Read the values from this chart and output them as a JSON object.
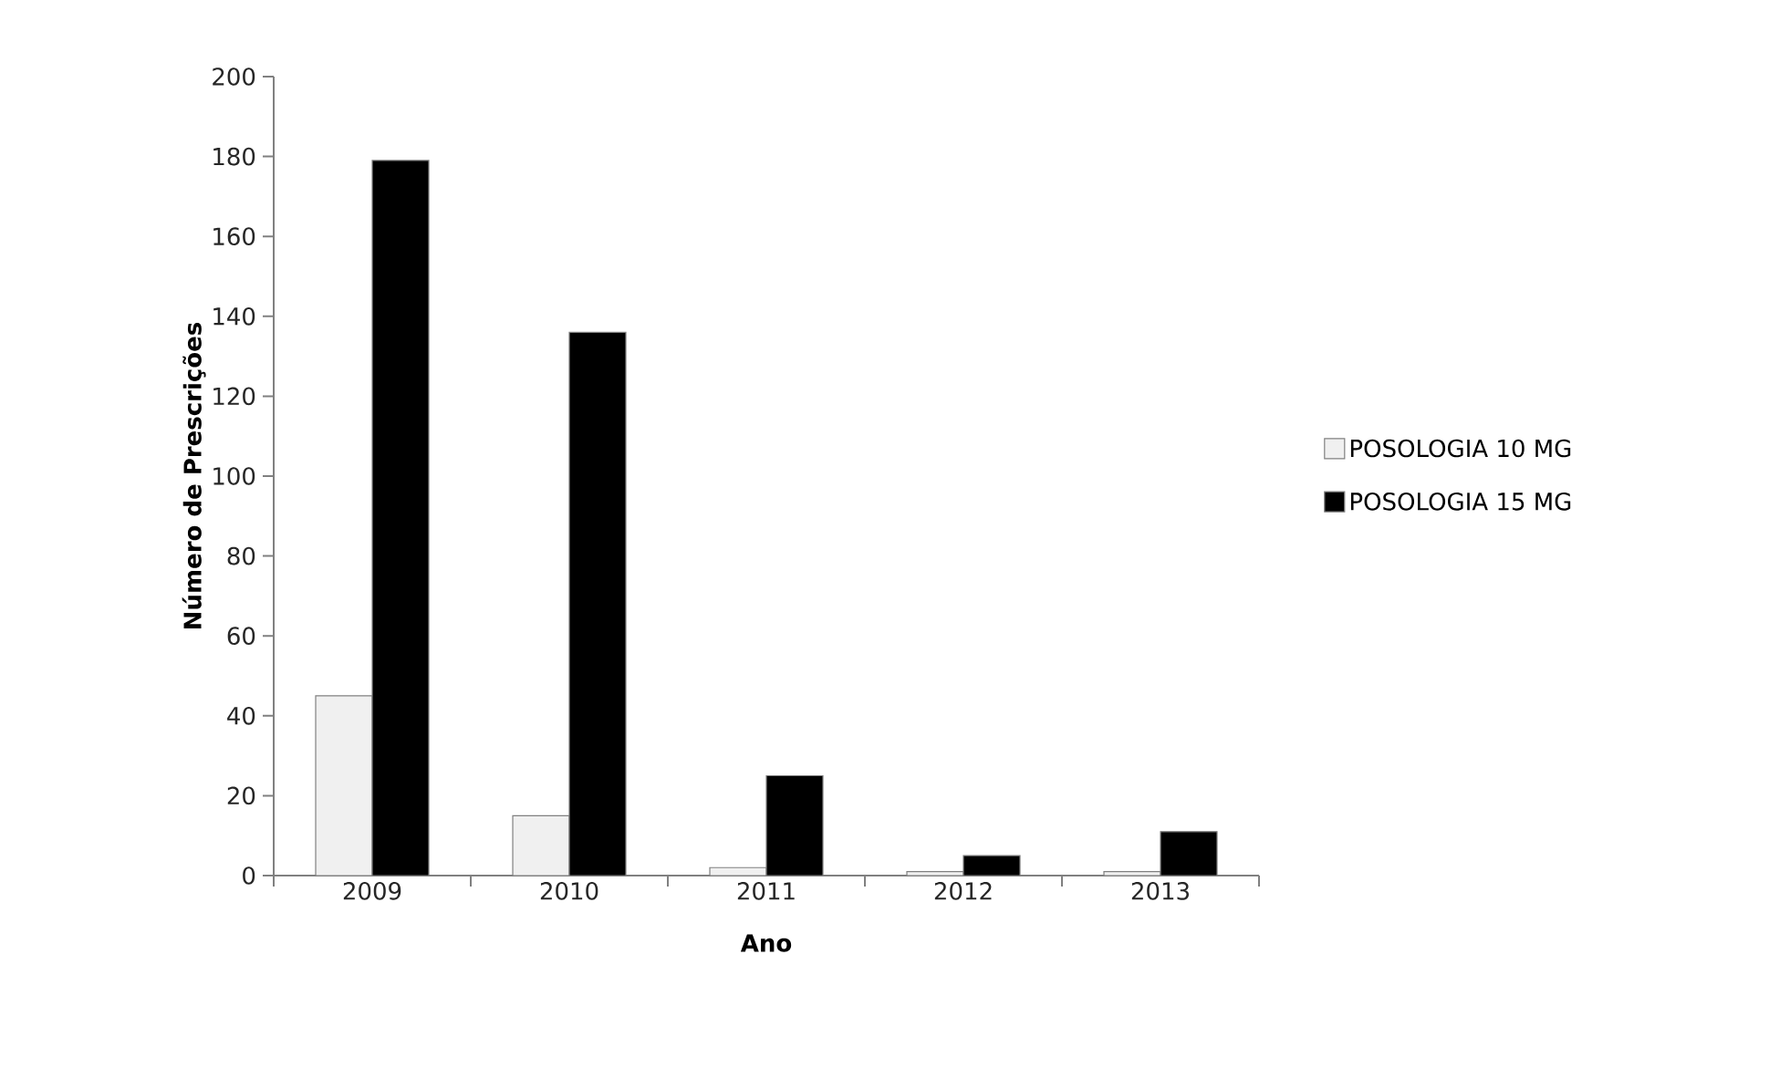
{
  "chart_data": {
    "type": "bar",
    "xlabel": "Ano",
    "ylabel": "Número de Prescrições",
    "categories": [
      "2009",
      "2010",
      "2011",
      "2012",
      "2013"
    ],
    "series": [
      {
        "name": "POSOLOGIA 10 MG",
        "color": "#f0f0f0",
        "values": [
          45,
          15,
          2,
          1,
          1
        ]
      },
      {
        "name": "POSOLOGIA 15 MG",
        "color": "#000000",
        "values": [
          179,
          136,
          25,
          5,
          11
        ]
      }
    ],
    "ylim": [
      0,
      200
    ],
    "yticks": [
      0,
      20,
      40,
      60,
      80,
      100,
      120,
      140,
      160,
      180,
      200
    ],
    "grid": false,
    "legend": "right"
  }
}
